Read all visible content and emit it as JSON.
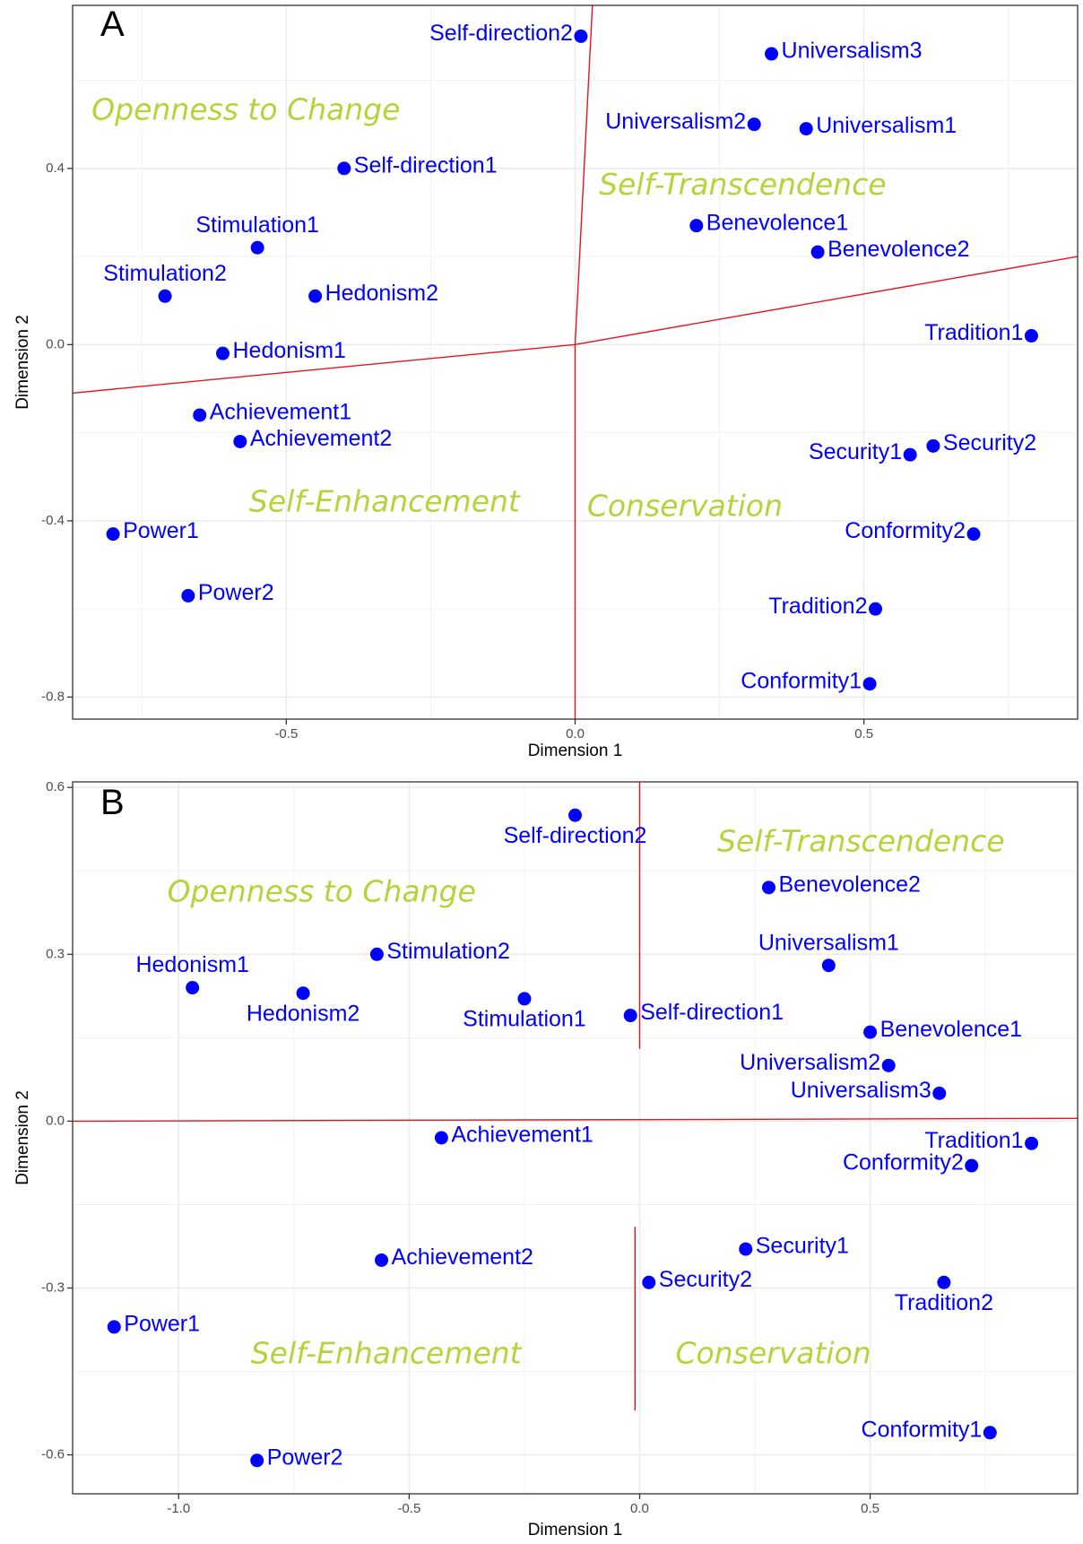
{
  "chart_data": [
    {
      "type": "scatter",
      "panel_letter": "A",
      "xlabel": "Dimension 1",
      "ylabel": "Dimension 2",
      "xlim": [
        -0.87,
        0.87
      ],
      "ylim": [
        -0.85,
        0.77
      ],
      "x_ticks": [
        -0.5,
        0.0,
        0.5
      ],
      "x_tick_labels": [
        "-0.5",
        "0.0",
        "0.5"
      ],
      "y_ticks": [
        -0.8,
        -0.4,
        0.0,
        0.4
      ],
      "y_tick_labels": [
        "-0.8",
        "-0.4",
        "0.0",
        "0.4"
      ],
      "grid": true,
      "point_color": "#0000ff",
      "line_color": "#e8141c",
      "region_color": "#b5d33a",
      "points": [
        {
          "label": "Self-direction2",
          "x": 0.01,
          "y": 0.7,
          "anchor": "end"
        },
        {
          "label": "Universalism3",
          "x": 0.34,
          "y": 0.66,
          "anchor": "start"
        },
        {
          "label": "Universalism2",
          "x": 0.31,
          "y": 0.5,
          "anchor": "end"
        },
        {
          "label": "Universalism1",
          "x": 0.4,
          "y": 0.49,
          "anchor": "start"
        },
        {
          "label": "Self-direction1",
          "x": -0.4,
          "y": 0.4,
          "anchor": "start"
        },
        {
          "label": "Benevolence1",
          "x": 0.21,
          "y": 0.27,
          "anchor": "start"
        },
        {
          "label": "Stimulation1",
          "x": -0.55,
          "y": 0.22,
          "anchor": "above"
        },
        {
          "label": "Benevolence2",
          "x": 0.42,
          "y": 0.21,
          "anchor": "start"
        },
        {
          "label": "Stimulation2",
          "x": -0.71,
          "y": 0.11,
          "anchor": "above"
        },
        {
          "label": "Hedonism2",
          "x": -0.45,
          "y": 0.11,
          "anchor": "start"
        },
        {
          "label": "Tradition1",
          "x": 0.79,
          "y": 0.02,
          "anchor": "end"
        },
        {
          "label": "Hedonism1",
          "x": -0.61,
          "y": -0.02,
          "anchor": "start"
        },
        {
          "label": "Achievement1",
          "x": -0.65,
          "y": -0.16,
          "anchor": "start"
        },
        {
          "label": "Achievement2",
          "x": -0.58,
          "y": -0.22,
          "anchor": "start"
        },
        {
          "label": "Security1",
          "x": 0.58,
          "y": -0.25,
          "anchor": "end"
        },
        {
          "label": "Security2",
          "x": 0.62,
          "y": -0.23,
          "anchor": "start"
        },
        {
          "label": "Power1",
          "x": -0.8,
          "y": -0.43,
          "anchor": "start"
        },
        {
          "label": "Conformity2",
          "x": 0.69,
          "y": -0.43,
          "anchor": "end"
        },
        {
          "label": "Power2",
          "x": -0.67,
          "y": -0.57,
          "anchor": "start"
        },
        {
          "label": "Tradition2",
          "x": 0.52,
          "y": -0.6,
          "anchor": "end"
        },
        {
          "label": "Conformity1",
          "x": 0.51,
          "y": -0.77,
          "anchor": "end"
        }
      ],
      "regions": [
        {
          "label": "Openness to Change",
          "x": -0.57,
          "y": 0.53
        },
        {
          "label": "Self-Transcendence",
          "x": 0.29,
          "y": 0.36
        },
        {
          "label": "Self-Enhancement",
          "x": -0.33,
          "y": -0.36
        },
        {
          "label": "Conservation",
          "x": 0.19,
          "y": -0.37
        }
      ],
      "lines": [
        {
          "points": [
            [
              -0.87,
              -0.11
            ],
            [
              0.0,
              0.0
            ],
            [
              0.87,
              0.2
            ]
          ]
        },
        {
          "points": [
            [
              0.0,
              0.0
            ],
            [
              0.03,
              0.77
            ]
          ]
        },
        {
          "points": [
            [
              0.0,
              0.0
            ],
            [
              0.0,
              -0.85
            ]
          ]
        }
      ]
    },
    {
      "type": "scatter",
      "panel_letter": "B",
      "xlabel": "Dimension 1",
      "ylabel": "Dimension 2",
      "xlim": [
        -1.23,
        0.95
      ],
      "ylim": [
        -0.67,
        0.61
      ],
      "x_ticks": [
        -1.0,
        -0.5,
        0.0,
        0.5
      ],
      "x_tick_labels": [
        "-1.0",
        "-0.5",
        "0.0",
        "0.5"
      ],
      "y_ticks": [
        -0.6,
        -0.3,
        0.0,
        0.3,
        0.6
      ],
      "y_tick_labels": [
        "-0.6",
        "-0.3",
        "0.0",
        "0.3",
        "0.6"
      ],
      "grid": true,
      "point_color": "#0000ff",
      "line_color": "#e8141c",
      "region_color": "#b5d33a",
      "points": [
        {
          "label": "Self-direction2",
          "x": -0.14,
          "y": 0.55,
          "anchor": "below"
        },
        {
          "label": "Benevolence2",
          "x": 0.28,
          "y": 0.42,
          "anchor": "start"
        },
        {
          "label": "Stimulation2",
          "x": -0.57,
          "y": 0.3,
          "anchor": "start"
        },
        {
          "label": "Universalism1",
          "x": 0.41,
          "y": 0.28,
          "anchor": "above"
        },
        {
          "label": "Hedonism1",
          "x": -0.97,
          "y": 0.24,
          "anchor": "above"
        },
        {
          "label": "Hedonism2",
          "x": -0.73,
          "y": 0.23,
          "anchor": "below"
        },
        {
          "label": "Stimulation1",
          "x": -0.25,
          "y": 0.22,
          "anchor": "below"
        },
        {
          "label": "Self-direction1",
          "x": -0.02,
          "y": 0.19,
          "anchor": "start"
        },
        {
          "label": "Benevolence1",
          "x": 0.5,
          "y": 0.16,
          "anchor": "start"
        },
        {
          "label": "Universalism2",
          "x": 0.54,
          "y": 0.1,
          "anchor": "end"
        },
        {
          "label": "Universalism3",
          "x": 0.65,
          "y": 0.05,
          "anchor": "end"
        },
        {
          "label": "Achievement1",
          "x": -0.43,
          "y": -0.03,
          "anchor": "start"
        },
        {
          "label": "Tradition1",
          "x": 0.85,
          "y": -0.04,
          "anchor": "end"
        },
        {
          "label": "Conformity2",
          "x": 0.72,
          "y": -0.08,
          "anchor": "end"
        },
        {
          "label": "Security1",
          "x": 0.23,
          "y": -0.23,
          "anchor": "start"
        },
        {
          "label": "Achievement2",
          "x": -0.56,
          "y": -0.25,
          "anchor": "start"
        },
        {
          "label": "Security2",
          "x": 0.02,
          "y": -0.29,
          "anchor": "start"
        },
        {
          "label": "Tradition2",
          "x": 0.66,
          "y": -0.29,
          "anchor": "below"
        },
        {
          "label": "Power1",
          "x": -1.14,
          "y": -0.37,
          "anchor": "start"
        },
        {
          "label": "Conformity1",
          "x": 0.76,
          "y": -0.56,
          "anchor": "end"
        },
        {
          "label": "Power2",
          "x": -0.83,
          "y": -0.61,
          "anchor": "start"
        }
      ],
      "regions": [
        {
          "label": "Openness to Change",
          "x": -0.69,
          "y": 0.41
        },
        {
          "label": "Self-Transcendence",
          "x": 0.48,
          "y": 0.5
        },
        {
          "label": "Self-Enhancement",
          "x": -0.55,
          "y": -0.42
        },
        {
          "label": "Conservation",
          "x": 0.29,
          "y": -0.42
        }
      ],
      "lines": [
        {
          "points": [
            [
              -1.23,
              0.0
            ],
            [
              0.95,
              0.005
            ]
          ]
        },
        {
          "points": [
            [
              0.0,
              0.61
            ],
            [
              0.0,
              0.13
            ]
          ]
        },
        {
          "points": [
            [
              -0.01,
              -0.19
            ],
            [
              -0.01,
              -0.52
            ]
          ]
        }
      ]
    }
  ]
}
